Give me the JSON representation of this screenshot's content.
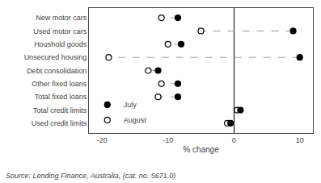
{
  "chart_data": {
    "type": "dumbbell",
    "categories": [
      "New motor cars",
      "Used motor cars",
      "Houshold goods",
      "Unsecured housing",
      "Debt consolidation",
      "Other fixed loans",
      "Total fixed loans",
      "Total credit limits",
      "Used credit limits"
    ],
    "series": [
      {
        "name": "July",
        "values": [
          -8.5,
          9.0,
          -8.0,
          10.0,
          -11.5,
          -8.5,
          -8.5,
          1.0,
          -0.5
        ],
        "color": "#000000",
        "marker": "filled"
      },
      {
        "name": "August",
        "values": [
          -11.0,
          -5.0,
          -10.0,
          -19.0,
          -13.0,
          -11.0,
          -11.5,
          0.5,
          -1.0
        ],
        "color": "#000000",
        "marker": "open"
      }
    ],
    "color": "#999999",
    "line_style": "dashed",
    "xlabel": "% change",
    "xlim": [
      -22,
      12
    ],
    "xticks": [
      -20,
      -10,
      0,
      10
    ],
    "grid": false,
    "legend": "lower left",
    "annotations": [
      "Source: Lending Finance, Australia, (cat. no. 5671.0)"
    ]
  }
}
